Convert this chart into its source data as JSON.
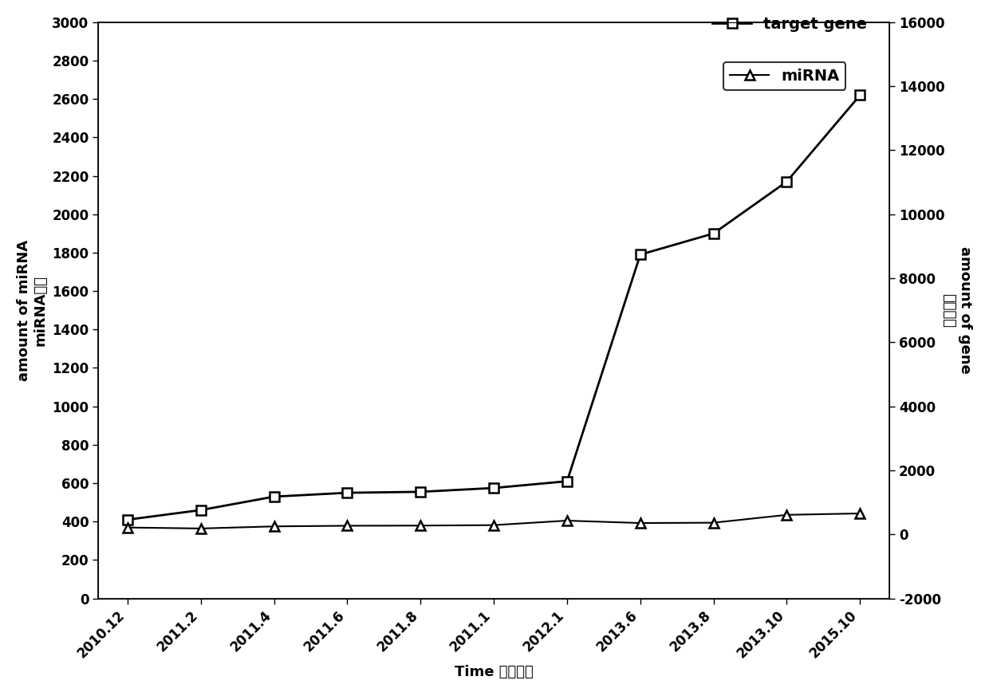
{
  "x_labels": [
    "2010.12",
    "2011.2",
    "2011.4",
    "2011.6",
    "2011.8",
    "2011.1",
    "2012.1",
    "2013.6",
    "2013.8",
    "2013.10",
    "2015.10"
  ],
  "target_gene_values": [
    410,
    460,
    530,
    550,
    555,
    575,
    610,
    1790,
    1900,
    2170,
    2620
  ],
  "mirna_values": [
    215,
    185,
    250,
    270,
    275,
    290,
    430,
    355,
    365,
    610,
    655
  ],
  "left_ylabel_line1": "amount of miRNA",
  "left_ylabel_line2": "miRNA数量",
  "right_ylabel_line1": "amount of gene",
  "right_ylabel_line2": "基因数量",
  "xlabel": "Time 发布时间",
  "legend_target": "target gene",
  "legend_mirna": "miRNA",
  "left_ylim": [
    0,
    3000
  ],
  "left_yticks": [
    0,
    200,
    400,
    600,
    800,
    1000,
    1200,
    1400,
    1600,
    1800,
    2000,
    2200,
    2400,
    2600,
    2800,
    3000
  ],
  "right_ylim": [
    -2000,
    16000
  ],
  "right_yticks": [
    -2000,
    0,
    2000,
    4000,
    6000,
    8000,
    10000,
    12000,
    14000,
    16000
  ],
  "line_color": "#000000",
  "bg_color": "#ffffff",
  "target_marker": "s",
  "mirna_marker": "^",
  "target_linewidth": 2.0,
  "mirna_linewidth": 1.5,
  "marker_size": 9,
  "tick_labelsize": 12,
  "label_fontsize": 13,
  "legend_fontsize": 14
}
